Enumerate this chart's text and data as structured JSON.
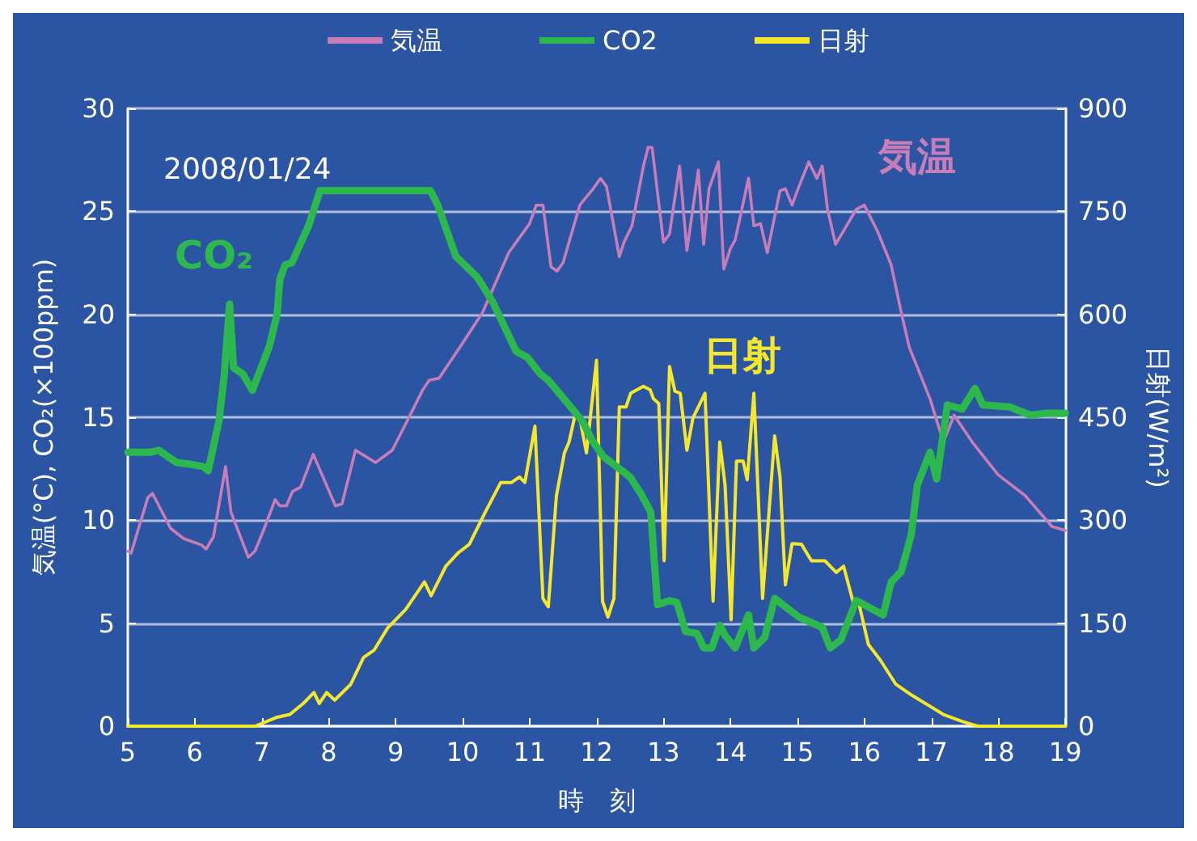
{
  "chart_data": {
    "type": "line",
    "xlabel": "時　刻",
    "ylabel": "気温(°C), CO₂(×100ppm)",
    "y2label": "日射(W/m²)",
    "xlim": [
      5,
      19
    ],
    "xticks": [
      5,
      6,
      7,
      8,
      9,
      10,
      11,
      12,
      13,
      14,
      15,
      16,
      17,
      18,
      19
    ],
    "ylim": [
      0,
      30
    ],
    "yticks": [
      0,
      5,
      10,
      15,
      20,
      25,
      30
    ],
    "y2lim": [
      0,
      900
    ],
    "y2ticks": [
      0,
      150,
      300,
      450,
      600,
      750,
      900
    ],
    "grid": "y",
    "legend": "top",
    "marker": "none",
    "line_style": "solid",
    "annotations": [
      "2008/01/24",
      "気温",
      "CO₂",
      "日射"
    ],
    "series": [
      {
        "name": "気温",
        "color": "#c77db8",
        "x": [
          5.0,
          5.05,
          5.3,
          5.37,
          5.64,
          5.84,
          6.1,
          6.17,
          6.28,
          6.46,
          6.54,
          6.8,
          6.9,
          7.05,
          7.2,
          7.27,
          7.37,
          7.46,
          7.58,
          7.77,
          8.1,
          8.2,
          8.4,
          8.7,
          8.95,
          9.2,
          9.4,
          9.5,
          9.65,
          9.98,
          10.14,
          10.3,
          10.69,
          11.0,
          11.1,
          11.2,
          11.32,
          11.41,
          11.5,
          11.75,
          11.95,
          12.06,
          12.15,
          12.34,
          12.41,
          12.53,
          12.7,
          12.77,
          12.83,
          13.0,
          13.09,
          13.24,
          13.35,
          13.52,
          13.6,
          13.68,
          13.82,
          13.9,
          14.0,
          14.07,
          14.27,
          14.35,
          14.45,
          14.55,
          14.74,
          14.82,
          14.92,
          15.01,
          15.17,
          15.29,
          15.37,
          15.45,
          15.57,
          15.88,
          16.0,
          16.2,
          16.4,
          16.55,
          16.67,
          16.98,
          17.18,
          17.34,
          17.61,
          18.0,
          18.4,
          18.8,
          19.0
        ],
        "values": [
          8.5,
          8.4,
          11.1,
          11.3,
          9.6,
          9.1,
          8.8,
          8.6,
          9.2,
          12.6,
          10.4,
          8.2,
          8.5,
          9.7,
          11.0,
          10.7,
          10.7,
          11.4,
          11.6,
          13.2,
          10.7,
          10.8,
          13.4,
          12.8,
          13.4,
          15.0,
          16.3,
          16.8,
          16.9,
          18.5,
          19.3,
          20.1,
          23.0,
          24.4,
          25.3,
          25.3,
          22.3,
          22.1,
          22.5,
          25.3,
          26.1,
          26.6,
          26.2,
          22.8,
          23.5,
          24.3,
          27.2,
          28.1,
          28.1,
          23.5,
          23.9,
          27.2,
          23.1,
          27.0,
          23.4,
          26.1,
          27.4,
          22.2,
          23.2,
          23.6,
          26.6,
          24.3,
          24.4,
          23.0,
          26.0,
          26.1,
          25.3,
          26.1,
          27.4,
          26.6,
          27.2,
          25.1,
          23.4,
          25.1,
          25.3,
          24.0,
          22.4,
          20.1,
          18.4,
          15.9,
          13.8,
          15.1,
          13.8,
          12.2,
          11.2,
          9.7,
          9.5
        ]
      },
      {
        "name": "CO2",
        "color": "#2db84e",
        "x": [
          5.0,
          5.34,
          5.46,
          5.73,
          5.97,
          6.13,
          6.2,
          6.36,
          6.44,
          6.52,
          6.58,
          6.72,
          6.86,
          7.11,
          7.23,
          7.27,
          7.35,
          7.45,
          7.7,
          7.87,
          9.52,
          9.63,
          9.9,
          10.22,
          10.45,
          10.8,
          10.97,
          11.16,
          11.28,
          11.64,
          11.79,
          11.95,
          12.1,
          12.34,
          12.5,
          12.66,
          12.81,
          12.91,
          13.09,
          13.2,
          13.33,
          13.5,
          13.6,
          13.72,
          13.84,
          13.92,
          14.07,
          14.27,
          14.35,
          14.51,
          14.66,
          15.02,
          15.37,
          15.49,
          15.65,
          15.88,
          16.28,
          16.4,
          16.55,
          16.7,
          16.79,
          16.98,
          17.08,
          17.24,
          17.46,
          17.65,
          17.77,
          18.17,
          18.48,
          18.72,
          19.0
        ],
        "values": [
          13.3,
          13.3,
          13.4,
          12.8,
          12.7,
          12.6,
          12.4,
          14.8,
          17.0,
          20.5,
          17.4,
          17.1,
          16.3,
          18.4,
          20.0,
          21.7,
          22.4,
          22.5,
          24.3,
          26.0,
          26.0,
          25.3,
          22.8,
          21.8,
          20.6,
          18.2,
          17.9,
          17.1,
          16.8,
          15.4,
          14.8,
          13.8,
          13.1,
          12.5,
          12.1,
          11.3,
          10.4,
          5.9,
          6.1,
          6.0,
          4.6,
          4.5,
          3.8,
          3.8,
          4.9,
          4.4,
          3.8,
          5.4,
          3.8,
          4.3,
          6.2,
          5.3,
          4.8,
          3.8,
          4.2,
          6.1,
          5.4,
          7.0,
          7.5,
          9.3,
          11.7,
          13.3,
          12.0,
          15.6,
          15.4,
          16.4,
          15.6,
          15.5,
          15.1,
          15.2,
          15.2
        ]
      },
      {
        "name": "日射",
        "color": "#f5e82a",
        "axis": "y2",
        "x": [
          5.0,
          6.9,
          7.23,
          7.42,
          7.62,
          7.78,
          7.86,
          7.97,
          8.09,
          8.33,
          8.52,
          8.68,
          8.88,
          9.15,
          9.43,
          9.53,
          9.75,
          9.94,
          10.1,
          10.34,
          10.57,
          10.73,
          10.85,
          10.93,
          11.08,
          11.2,
          11.28,
          11.4,
          11.52,
          11.59,
          11.67,
          11.75,
          11.85,
          12.0,
          12.09,
          12.17,
          12.26,
          12.34,
          12.44,
          12.51,
          12.7,
          12.8,
          12.85,
          12.93,
          13.01,
          13.09,
          13.17,
          13.25,
          13.35,
          13.44,
          13.62,
          13.74,
          13.84,
          13.92,
          14.01,
          14.09,
          14.19,
          14.25,
          14.35,
          14.48,
          14.66,
          14.74,
          14.82,
          14.92,
          15.06,
          15.21,
          15.41,
          15.58,
          15.69,
          15.84,
          15.92,
          16.06,
          16.24,
          16.47,
          16.71,
          16.98,
          17.18,
          17.46,
          17.69,
          19.0
        ],
        "values": [
          0,
          0,
          13,
          17,
          33,
          49,
          33,
          49,
          38,
          61,
          100,
          111,
          143,
          170,
          210,
          190,
          233,
          253,
          265,
          312,
          355,
          355,
          363,
          355,
          437,
          186,
          174,
          335,
          398,
          414,
          449,
          449,
          398,
          533,
          182,
          159,
          186,
          465,
          465,
          485,
          495,
          490,
          477,
          470,
          241,
          524,
          488,
          485,
          402,
          449,
          485,
          182,
          414,
          351,
          155,
          386,
          386,
          359,
          485,
          186,
          423,
          363,
          206,
          266,
          265,
          241,
          241,
          224,
          233,
          178,
          178,
          119,
          96,
          61,
          45,
          29,
          17,
          7,
          0,
          0
        ]
      }
    ]
  }
}
